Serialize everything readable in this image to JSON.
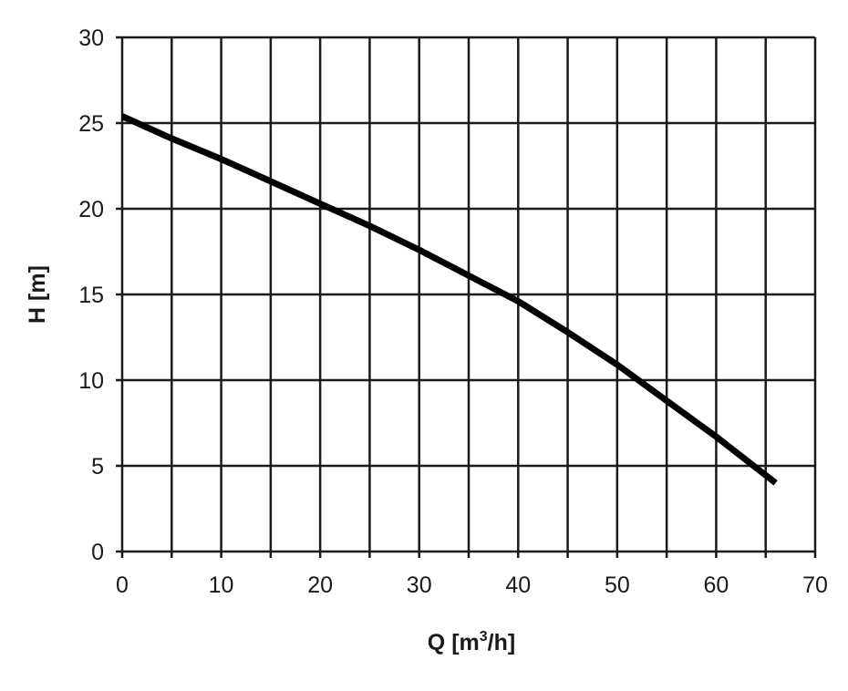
{
  "chart_data": {
    "type": "line",
    "title": "",
    "xlabel_main": "Q [m",
    "xlabel_sup": "3",
    "xlabel_end": "/h]",
    "ylabel": "H [m]",
    "xlim": [
      0,
      70
    ],
    "ylim": [
      0,
      30
    ],
    "x_ticks": [
      "0",
      "10",
      "20",
      "30",
      "40",
      "50",
      "60",
      "70"
    ],
    "y_ticks": [
      "0",
      "5",
      "10",
      "15",
      "20",
      "25",
      "30"
    ],
    "x_grid_step": 5,
    "y_grid_step": 5,
    "grid": true,
    "series": [
      {
        "x": [
          0,
          5,
          10,
          15,
          20,
          25,
          30,
          35,
          40,
          45,
          50,
          55,
          60,
          66
        ],
        "y": [
          25.4,
          24.1,
          22.9,
          21.6,
          20.3,
          19.0,
          17.6,
          16.1,
          14.6,
          12.8,
          10.9,
          8.8,
          6.7,
          4.0
        ]
      }
    ],
    "colors": {
      "line": "#000000",
      "grid": "#1a1a1a",
      "text": "#1a1a1a"
    }
  }
}
